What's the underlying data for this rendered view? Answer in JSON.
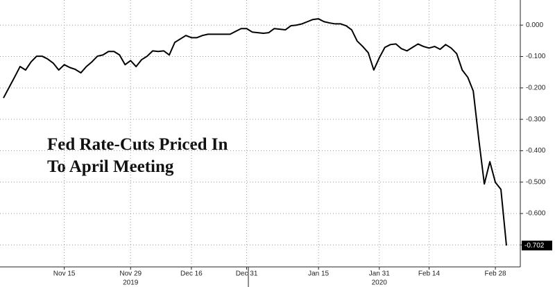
{
  "chart_data": {
    "type": "line",
    "annotation": [
      "Fed Rate-Cuts Priced In",
      "To April Meeting"
    ],
    "values": [
      -0.232,
      -0.199,
      -0.166,
      -0.132,
      -0.143,
      -0.117,
      -0.099,
      -0.099,
      -0.108,
      -0.121,
      -0.143,
      -0.126,
      -0.135,
      -0.141,
      -0.152,
      -0.132,
      -0.117,
      -0.099,
      -0.095,
      -0.084,
      -0.084,
      -0.095,
      -0.126,
      -0.113,
      -0.132,
      -0.11,
      -0.099,
      -0.082,
      -0.084,
      -0.082,
      -0.095,
      -0.055,
      -0.044,
      -0.033,
      -0.04,
      -0.04,
      -0.033,
      -0.029,
      -0.029,
      -0.029,
      -0.029,
      -0.029,
      -0.02,
      -0.011,
      -0.011,
      -0.022,
      -0.024,
      -0.026,
      -0.024,
      -0.011,
      -0.013,
      -0.015,
      -0.002,
      0.0,
      0.004,
      0.011,
      0.018,
      0.02,
      0.011,
      0.007,
      0.004,
      0.004,
      -0.002,
      -0.015,
      -0.051,
      -0.068,
      -0.088,
      -0.143,
      -0.104,
      -0.071,
      -0.062,
      -0.06,
      -0.075,
      -0.082,
      -0.071,
      -0.06,
      -0.068,
      -0.073,
      -0.068,
      -0.077,
      -0.062,
      -0.073,
      -0.091,
      -0.143,
      -0.166,
      -0.21,
      -0.364,
      -0.506,
      -0.435,
      -0.501,
      -0.523,
      -0.702
    ],
    "value_labels": [
      null,
      null,
      null,
      null,
      null,
      null,
      null,
      null,
      null,
      null,
      null,
      null,
      null,
      null,
      null,
      null,
      null,
      null,
      null,
      null,
      null,
      null,
      null,
      null,
      null,
      null,
      null,
      null,
      null,
      null,
      null,
      null,
      null,
      null,
      null,
      null,
      null,
      null,
      null,
      null,
      null,
      null,
      null,
      null,
      null,
      null,
      null,
      null,
      null,
      null,
      null,
      null,
      null,
      null,
      null,
      null,
      null,
      null,
      null,
      null,
      null,
      null,
      null,
      null,
      null,
      null,
      null,
      null,
      null,
      null,
      null,
      null,
      null,
      null,
      null,
      null,
      null,
      null,
      null,
      null,
      null,
      null,
      null,
      null,
      null,
      null,
      null,
      null,
      null,
      null,
      null,
      "-0.702"
    ],
    "color": "#000000",
    "xlim": [
      0,
      91
    ],
    "xticks": [
      {
        "value": 11,
        "label": "Nov 15"
      },
      {
        "value": 23,
        "label": "Nov 29"
      },
      {
        "value": 34,
        "label": "Dec 16"
      },
      {
        "value": 44,
        "label": "Dec 31"
      },
      {
        "value": 57,
        "label": "Jan 15"
      },
      {
        "value": 68,
        "label": "Jan 31"
      },
      {
        "value": 77,
        "label": "Feb 14"
      },
      {
        "value": 89,
        "label": "Feb 28"
      }
    ],
    "year_ticks": [
      {
        "value": 23,
        "label": "2019"
      },
      {
        "value": 68,
        "label": "2020"
      }
    ],
    "ylim": [
      -0.77,
      0.08
    ],
    "yticks": [
      {
        "value": 0,
        "label": "0.000"
      },
      {
        "value": -0.1,
        "label": "-0.100"
      },
      {
        "value": -0.2,
        "label": "-0.200"
      },
      {
        "value": -0.3,
        "label": "-0.300"
      },
      {
        "value": -0.4,
        "label": "-0.400"
      },
      {
        "value": -0.5,
        "label": "-0.500"
      },
      {
        "value": -0.6,
        "label": "-0.600"
      },
      {
        "value": -0.7,
        "label": "-0.700"
      }
    ],
    "grid": true
  }
}
